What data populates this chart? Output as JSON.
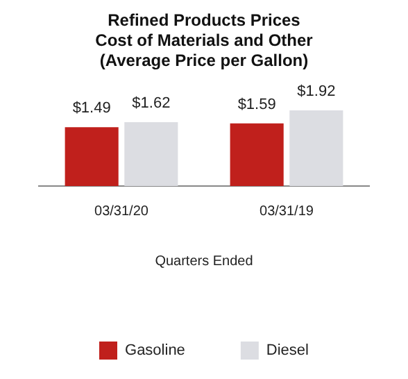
{
  "chart_data": {
    "type": "bar",
    "title": "Refined Products Prices\nCost of Materials and Other\n(Average Price per Gallon)",
    "xlabel": "Quarters Ended",
    "categories": [
      "03/31/20",
      "03/31/19"
    ],
    "series": [
      {
        "name": "Gasoline",
        "color": "#c0201c",
        "values": [
          1.49,
          1.59
        ],
        "value_labels": [
          "$1.49",
          "$1.59"
        ]
      },
      {
        "name": "Diesel",
        "color": "#dcdde2",
        "values": [
          1.62,
          1.92
        ],
        "value_labels": [
          "$1.62",
          "$1.92"
        ]
      }
    ],
    "legend": "bottom",
    "grid": false
  }
}
